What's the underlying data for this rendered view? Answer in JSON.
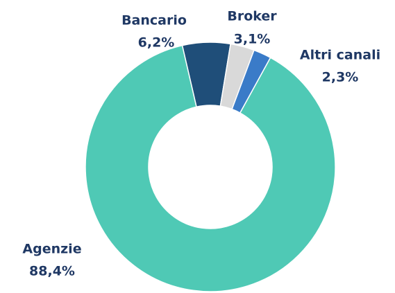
{
  "chart_data": {
    "type": "donut",
    "categories": [
      "Bancario",
      "Broker",
      "Altri canali",
      "Agenzie"
    ],
    "values": [
      6.2,
      3.1,
      2.3,
      88.4
    ],
    "value_labels": [
      "6,2%",
      "3,1%",
      "2,3%",
      "88,4%"
    ],
    "colors": [
      "#1f4e79",
      "#d9d9d9",
      "#3a7bc8",
      "#4fc9b5"
    ]
  }
}
